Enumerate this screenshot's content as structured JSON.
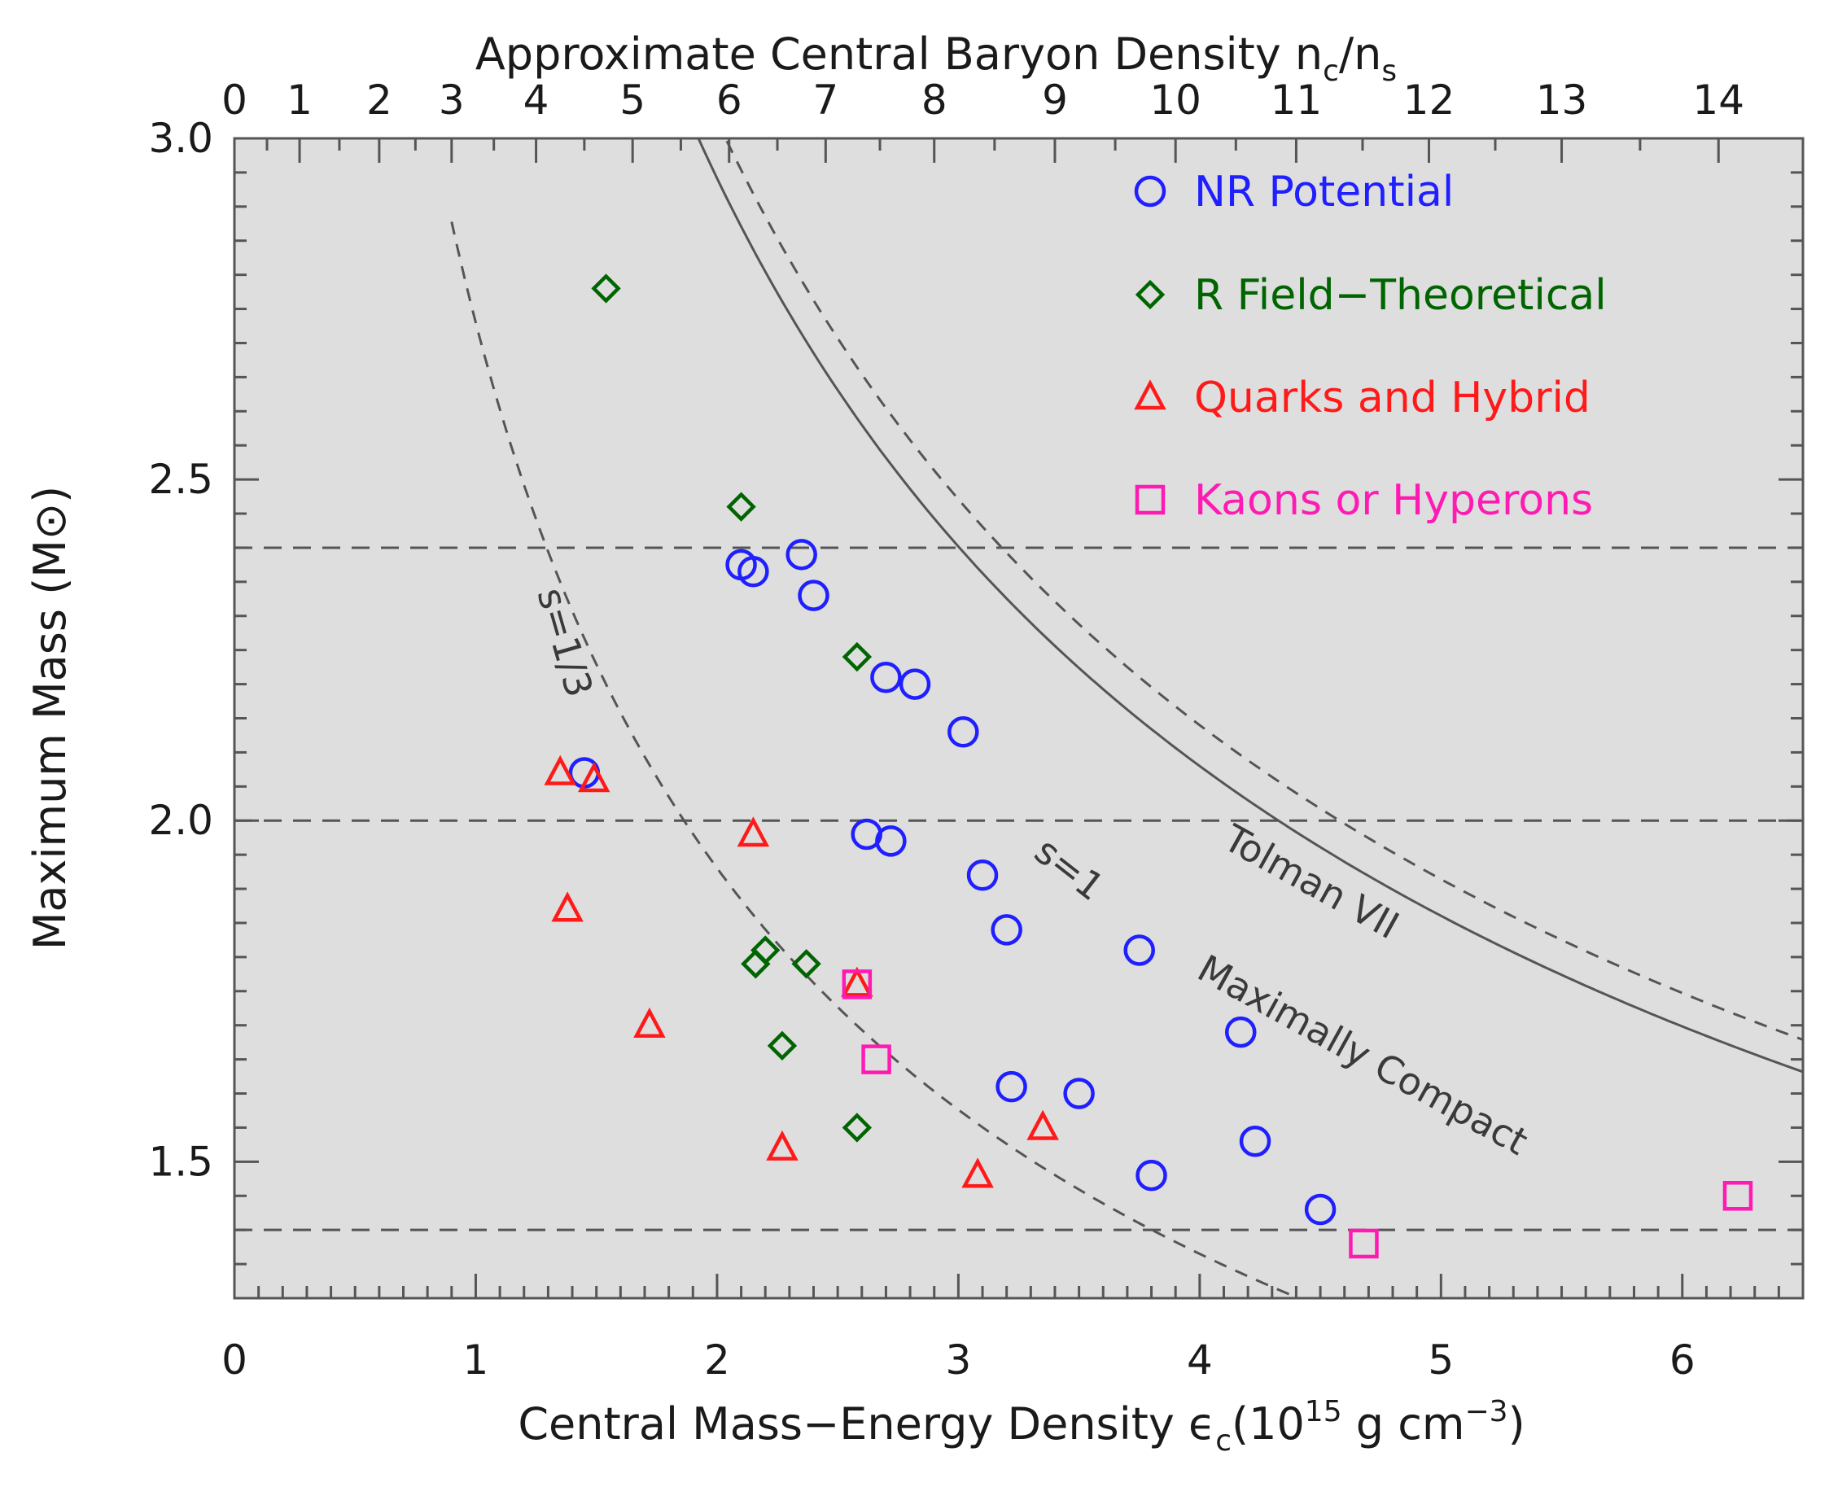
{
  "chart_data": {
    "type": "scatter",
    "xlabel": "Central Mass−Energy Density ϵ",
    "xlabel_sub": "c",
    "xlabel_units_prefix": "(10",
    "xlabel_units_exp": "15",
    "xlabel_units_mid": " g cm",
    "xlabel_units_exp2": "−3",
    "xlabel_units_suffix": ")",
    "ylabel": "Maximum Mass (M⊙)",
    "top_xlabel": "Approximate Central Baryon Density n",
    "top_xlabel_sub1": "c",
    "top_xlabel_mid": "/n",
    "top_xlabel_sub2": "s",
    "xlim": [
      0,
      6.5
    ],
    "ylim": [
      1.3,
      3.0
    ],
    "x_ticks": [
      "0",
      "1",
      "2",
      "3",
      "4",
      "5",
      "6"
    ],
    "y_ticks": [
      "1.5",
      "2.0",
      "2.5",
      "3.0"
    ],
    "top_ticks": [
      "0",
      "1",
      "2",
      "3",
      "4",
      "5",
      "6",
      "7",
      "8",
      "9",
      "10",
      "11",
      "12",
      "13",
      "14"
    ],
    "top_tick_positions": [
      0,
      0.27,
      0.6,
      0.9,
      1.25,
      1.65,
      2.05,
      2.45,
      2.9,
      3.4,
      3.9,
      4.4,
      4.95,
      5.5,
      6.15
    ],
    "reference_lines_y": [
      2.4,
      2.0,
      1.4
    ],
    "series": [
      {
        "name": "NR Potential",
        "marker": "circle",
        "color": "#1f1fff",
        "x": [
          1.45,
          2.1,
          2.15,
          2.35,
          2.4,
          2.7,
          2.82,
          3.02,
          2.62,
          2.72,
          3.1,
          3.2,
          3.75,
          4.17,
          3.22,
          3.5,
          3.8,
          4.23,
          4.5
        ],
        "y": [
          2.07,
          2.375,
          2.365,
          2.39,
          2.33,
          2.21,
          2.2,
          2.13,
          1.98,
          1.97,
          1.92,
          1.84,
          1.81,
          1.69,
          1.61,
          1.6,
          1.48,
          1.53,
          1.43
        ]
      },
      {
        "name": "R Field−Theoretical",
        "marker": "diamond",
        "color": "#006400",
        "x": [
          1.54,
          2.1,
          2.58,
          2.2,
          2.16,
          2.37,
          2.27,
          2.58
        ],
        "y": [
          2.78,
          2.46,
          2.24,
          1.81,
          1.79,
          1.79,
          1.67,
          1.55
        ]
      },
      {
        "name": "Quarks and Hybrid",
        "marker": "triangle",
        "color": "#ff1a1a",
        "x": [
          1.35,
          1.49,
          2.15,
          1.38,
          1.72,
          2.58,
          2.27,
          3.35,
          3.08
        ],
        "y": [
          2.07,
          2.06,
          1.98,
          1.87,
          1.7,
          1.76,
          1.52,
          1.55,
          1.48
        ]
      },
      {
        "name": "Kaons or Hyperons",
        "marker": "square",
        "color": "#ff1ab3",
        "x": [
          2.58,
          2.66,
          4.68,
          6.23
        ],
        "y": [
          1.76,
          1.65,
          1.38,
          1.45
        ]
      }
    ],
    "curves": [
      {
        "name": "s=1/3",
        "style": "dashed",
        "function": "M = C / sqrt(eps)",
        "C": 2.73,
        "x_range": [
          0.9,
          4.7
        ]
      },
      {
        "name": "Maximally Compact",
        "style": "solid",
        "function": "M = C / sqrt(eps)",
        "C": 4.16,
        "x_range": [
          1.5,
          6.5
        ]
      },
      {
        "name": "Tolman VII",
        "style": "dashed",
        "function": "M = C / sqrt(eps)",
        "C": 4.28,
        "x_range": [
          1.5,
          6.5
        ]
      }
    ],
    "annotations": [
      "s=1/3",
      "s=1",
      "Maximally Compact",
      "Tolman VII"
    ]
  }
}
